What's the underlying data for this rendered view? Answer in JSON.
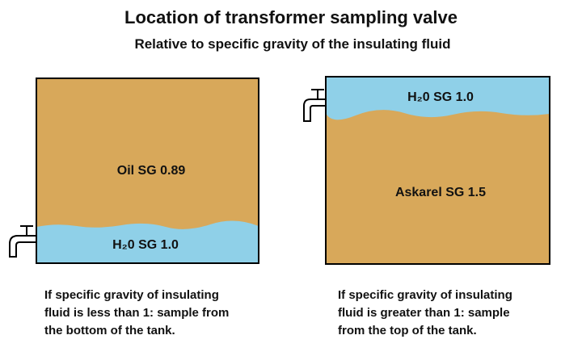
{
  "title": "Location of transformer sampling valve",
  "subtitle": "Relative to specific gravity of the insulating fluid",
  "left_tank": {
    "fluid_label": "Oil SG 0.89",
    "water_label": "H₂0 SG 1.0",
    "caption": [
      "If specific gravity of insulating",
      "fluid is less than 1: sample from",
      "the bottom of the tank."
    ]
  },
  "right_tank": {
    "fluid_label": "Askarel SG 1.5",
    "water_label": "H₂0 SG 1.0",
    "caption": [
      "If specific gravity of insulating",
      "fluid is greater than 1: sample",
      "from the top of the tank."
    ]
  }
}
